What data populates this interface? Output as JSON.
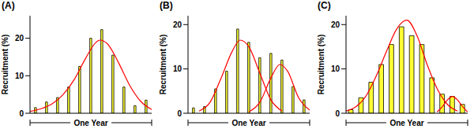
{
  "chart_data": [
    {
      "type": "histogram",
      "title": "(A)",
      "xlabel": "One Year",
      "ylabel": "Recruitment (%)",
      "bins": [
        0,
        1,
        2,
        3,
        4,
        5,
        6,
        7,
        8,
        9,
        10,
        11
      ],
      "values": [
        1.5,
        3,
        4.2,
        7,
        12.5,
        20,
        22.3,
        15.5,
        7,
        2,
        3.5
      ],
      "color": "#ffff33",
      "xlim": [
        0,
        11
      ],
      "ylim": [
        0,
        26
      ],
      "yticks": [
        0,
        10,
        20
      ],
      "tick_labels": "y",
      "curves": [
        {
          "type": "line",
          "color": "#ff0000",
          "x": [
            0,
            1,
            2,
            3,
            4,
            5,
            6,
            6.3,
            7,
            8,
            9,
            10,
            11
          ],
          "y": [
            0.5,
            1.2,
            2.5,
            5,
            9,
            14.5,
            19,
            19.5,
            18.5,
            13.5,
            7.5,
            3.2,
            1
          ]
        }
      ]
    },
    {
      "type": "histogram",
      "title": "(B)",
      "xlabel": "One Year",
      "ylabel": "Recruitment (%)",
      "bins": [
        0,
        1,
        2,
        3,
        4,
        5,
        6,
        7,
        8,
        9,
        10,
        11
      ],
      "values": [
        1.2,
        1.5,
        5.5,
        9.5,
        19,
        16,
        12.5,
        13.5,
        12,
        6,
        3
      ],
      "color": "#ffff33",
      "xlim": [
        0,
        11
      ],
      "ylim": [
        0,
        22
      ],
      "yticks": [
        0,
        10,
        20
      ],
      "tick_labels": "y",
      "curves": [
        {
          "type": "line",
          "color": "#ff0000",
          "x": [
            1,
            2,
            3,
            4,
            4.7,
            5.5,
            6.5,
            7.5,
            8.5
          ],
          "y": [
            0.5,
            2.5,
            8,
            14,
            16.5,
            15,
            9,
            3,
            0.5
          ]
        },
        {
          "type": "line",
          "color": "#ff0000",
          "x": [
            5.5,
            6.5,
            7.5,
            8.3,
            9,
            10,
            11
          ],
          "y": [
            0.3,
            2.5,
            8,
            11,
            9.5,
            3.5,
            0.7
          ]
        }
      ]
    },
    {
      "type": "histogram",
      "title": "(C)",
      "xlabel": "One Year",
      "ylabel": "Recruitment (%)",
      "bins": [
        0,
        1,
        2,
        3,
        4,
        5,
        6,
        7,
        8,
        9,
        10,
        11,
        12
      ],
      "values": [
        0.8,
        3.5,
        7,
        11,
        15.5,
        19.5,
        17.5,
        15.5,
        8,
        4.3,
        3.8,
        2
      ],
      "color": "#ffff33",
      "xlim": [
        0,
        12
      ],
      "ylim": [
        0,
        22
      ],
      "yticks": [
        0,
        10,
        20
      ],
      "tick_labels": "y",
      "curves": [
        {
          "type": "line",
          "color": "#ff0000",
          "x": [
            0,
            1,
            2,
            3,
            4,
            5,
            6,
            7,
            8,
            9,
            10,
            11
          ],
          "y": [
            0.5,
            1.5,
            4,
            8.5,
            14,
            19,
            21,
            17.5,
            11,
            5.5,
            2,
            0.5
          ]
        },
        {
          "type": "line",
          "color": "#ff0000",
          "x": [
            9,
            9.5,
            10,
            10.5,
            11,
            11.5,
            12
          ],
          "y": [
            0.3,
            1.5,
            3,
            3.8,
            3,
            1.5,
            0.3
          ]
        }
      ]
    }
  ]
}
